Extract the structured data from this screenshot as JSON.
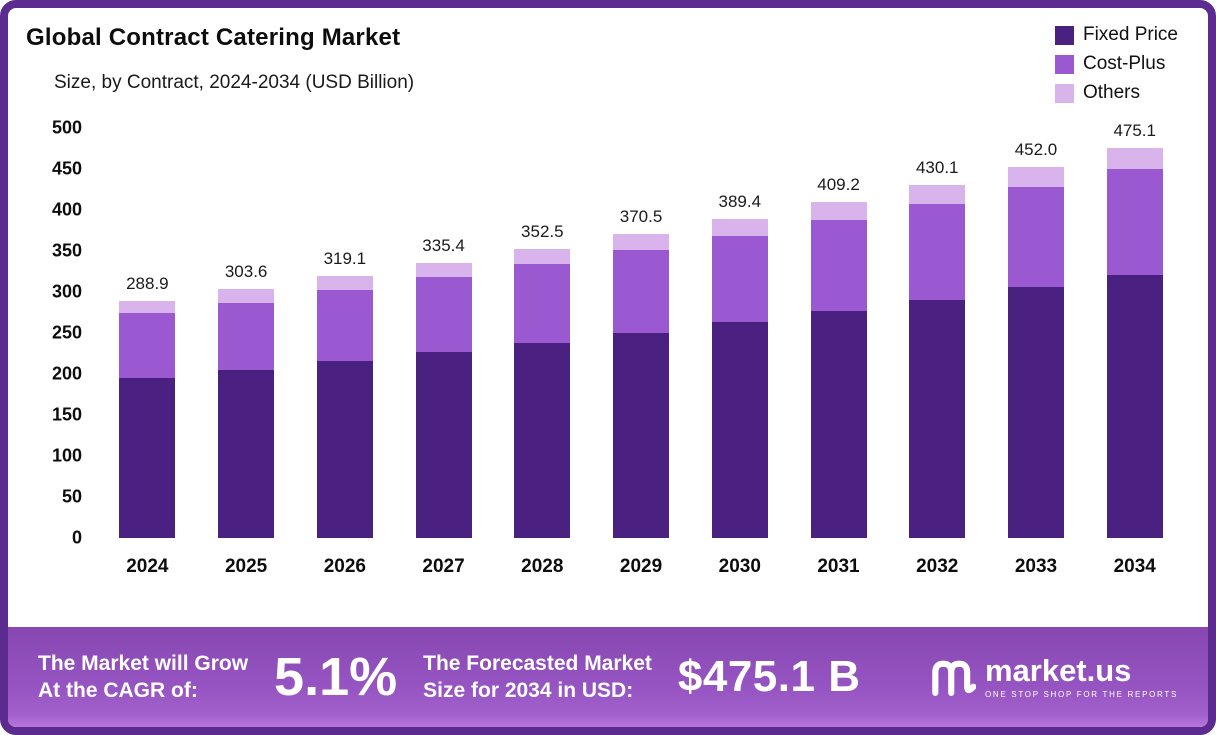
{
  "header": {
    "title": "Global Contract Catering Market",
    "subtitle": "Size, by Contract, 2024-2034 (USD Billion)"
  },
  "chart_data": {
    "type": "bar",
    "stacked": true,
    "title": "Global Contract Catering Market Size, by Contract, 2024-2034 (USD Billion)",
    "xlabel": "",
    "ylabel": "",
    "ylim": [
      0,
      500
    ],
    "ytick_step": 50,
    "grid": false,
    "legend_position": "top-right",
    "categories": [
      "2024",
      "2025",
      "2026",
      "2027",
      "2028",
      "2029",
      "2030",
      "2031",
      "2032",
      "2033",
      "2034"
    ],
    "series": [
      {
        "name": "Fixed Price",
        "color": "#4a2181",
        "values": [
          195.0,
          205.0,
          215.5,
          226.5,
          238.0,
          250.2,
          263.0,
          276.5,
          290.7,
          305.6,
          321.3
        ]
      },
      {
        "name": "Cost-Plus",
        "color": "#9b59d1",
        "values": [
          79.0,
          82.0,
          86.5,
          91.5,
          96.0,
          100.8,
          105.9,
          111.3,
          117.0,
          123.0,
          129.3
        ]
      },
      {
        "name": "Others",
        "color": "#d9b4ec",
        "values": [
          14.9,
          16.6,
          17.1,
          17.4,
          18.5,
          19.5,
          20.5,
          21.4,
          22.4,
          23.4,
          24.5
        ]
      }
    ],
    "totals": [
      288.9,
      303.6,
      319.1,
      335.4,
      352.5,
      370.5,
      389.4,
      409.2,
      430.1,
      452.0,
      475.1
    ]
  },
  "banner": {
    "grow_line1": "The Market will Grow",
    "grow_line2": "At the CAGR of:",
    "cagr": "5.1%",
    "forecast_line1": "The Forecasted Market",
    "forecast_line2": "Size for 2034 in USD:",
    "amount": "$475.1 B",
    "logo_name": "market.us",
    "logo_tagline": "ONE STOP SHOP FOR THE REPORTS"
  },
  "colors": {
    "frame_border": "#5b2b8f",
    "banner_top": "#8747b2",
    "banner_bottom": "#b874dc",
    "fixed_price": "#4a2181",
    "cost_plus": "#9b59d1",
    "others": "#d9b4ec"
  }
}
